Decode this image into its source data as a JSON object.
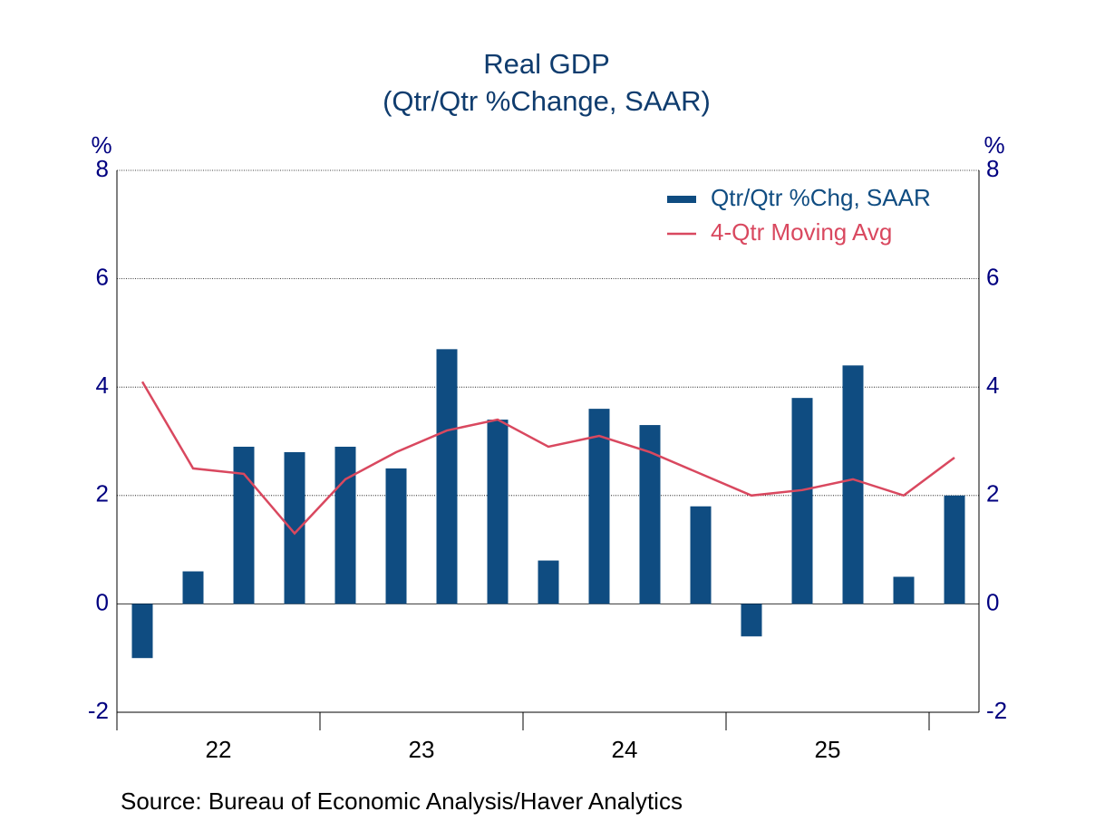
{
  "chart_data": {
    "type": "bar",
    "title": "Real GDP",
    "subtitle": "(Qtr/Qtr %Change, SAAR)",
    "ylabel": "%",
    "y2label": "%",
    "categories": [
      null,
      null,
      null,
      null,
      null,
      null,
      null,
      null,
      null,
      null,
      null,
      null,
      null,
      null,
      null,
      null,
      null
    ],
    "year_labels": [
      "22",
      "23",
      "24",
      "25"
    ],
    "series": [
      {
        "name": "Qtr/Qtr %Chg, SAAR",
        "type": "bar",
        "color": "#0f4c81",
        "values": [
          -1.0,
          0.6,
          2.9,
          2.8,
          2.9,
          2.5,
          4.7,
          3.4,
          0.8,
          3.6,
          3.3,
          1.8,
          -0.6,
          3.8,
          4.4,
          0.5,
          2.0
        ]
      },
      {
        "name": "4-Qtr Moving Avg",
        "type": "line",
        "color": "#d9485f",
        "values": [
          4.1,
          2.5,
          2.4,
          1.3,
          2.3,
          2.8,
          3.2,
          3.4,
          2.9,
          3.1,
          2.8,
          2.4,
          2.0,
          2.1,
          2.3,
          2.0,
          2.7
        ]
      }
    ],
    "ylim": [
      -2,
      8
    ],
    "yticks": [
      -2,
      0,
      2,
      4,
      6,
      8
    ],
    "y2lim": [
      -2,
      8
    ],
    "y2ticks": [
      -2,
      0,
      2,
      4,
      6,
      8
    ],
    "grid": true,
    "legend": "upper right",
    "source": "Source:  Bureau of Economic Analysis/Haver Analytics"
  }
}
